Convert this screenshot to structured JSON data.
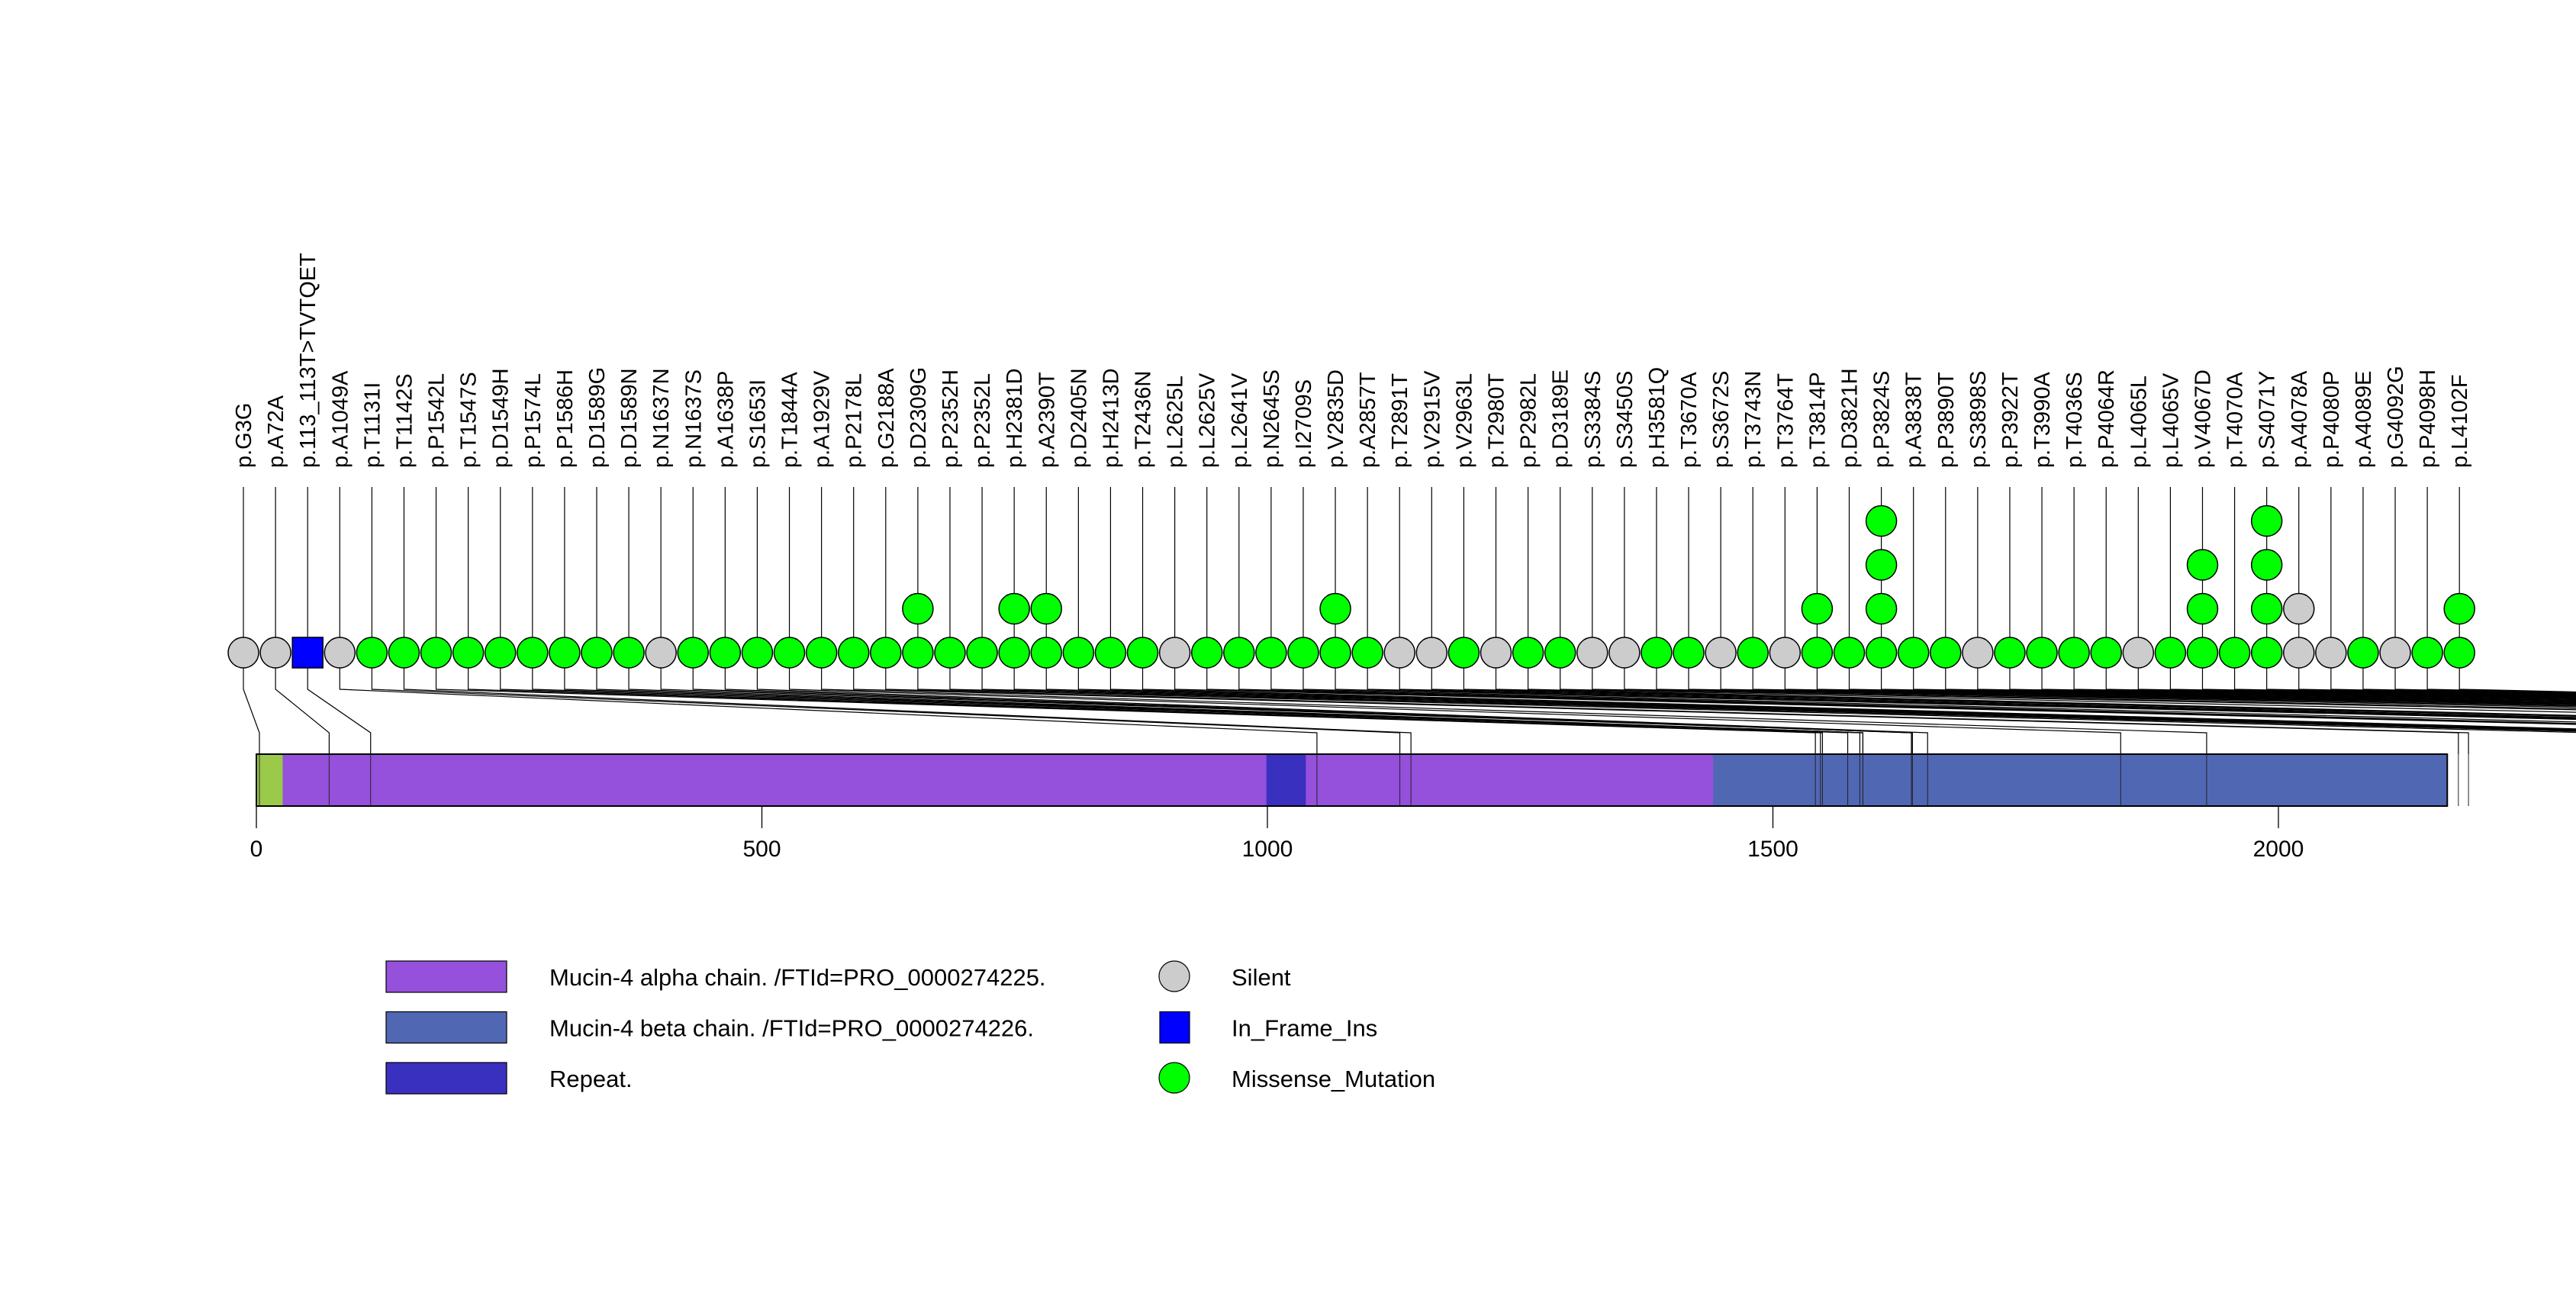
{
  "chart_data": {
    "type": "lollipop",
    "title": "",
    "xlabel": "",
    "ylabel": "",
    "protein_length": 2167,
    "xlim": [
      0,
      2167
    ],
    "x_ticks": [
      "0",
      "500",
      "1000",
      "1500",
      "2000"
    ],
    "x_tick_values": [
      0,
      500,
      1000,
      1500,
      2000
    ],
    "domains": [
      {
        "name": "signal",
        "start": 1,
        "end": 27,
        "color": "#9BC94A"
      },
      {
        "name": "Mucin-4 alpha chain. /FTId=PRO_0000274225.",
        "start": 27,
        "end": 1442,
        "color": "#9550DC"
      },
      {
        "name": "Repeat.",
        "start": 1000,
        "end": 1038,
        "color": "#3A30C0"
      },
      {
        "name": "Mucin-4 beta chain. /FTId=PRO_0000274226.",
        "start": 1442,
        "end": 2167,
        "color": "#5067B4"
      }
    ],
    "mutation_colors": {
      "Silent": "#CCCCCC",
      "In_Frame_Ins": "#0000FF",
      "Missense_Mutation": "#00FF00"
    },
    "mutations": [
      {
        "label": "p.G3G",
        "position": 3,
        "type": "Silent",
        "count": 1
      },
      {
        "label": "p.A72A",
        "position": 72,
        "type": "Silent",
        "count": 1
      },
      {
        "label": "p.113_113T>TVTQET",
        "position": 113,
        "type": "In_Frame_Ins",
        "count": 1
      },
      {
        "label": "p.A1049A",
        "position": 1049,
        "type": "Silent",
        "count": 1
      },
      {
        "label": "p.T1131I",
        "position": 1131,
        "type": "Missense_Mutation",
        "count": 1
      },
      {
        "label": "p.T1142S",
        "position": 1142,
        "type": "Missense_Mutation",
        "count": 1
      },
      {
        "label": "p.P1542L",
        "position": 1542,
        "type": "Missense_Mutation",
        "count": 1
      },
      {
        "label": "p.T1547S",
        "position": 1547,
        "type": "Missense_Mutation",
        "count": 1
      },
      {
        "label": "p.D1549H",
        "position": 1549,
        "type": "Missense_Mutation",
        "count": 1
      },
      {
        "label": "p.P1574L",
        "position": 1574,
        "type": "Missense_Mutation",
        "count": 1
      },
      {
        "label": "p.P1586H",
        "position": 1586,
        "type": "Missense_Mutation",
        "count": 1
      },
      {
        "label": "p.D1589G",
        "position": 1589,
        "type": "Missense_Mutation",
        "count": 1
      },
      {
        "label": "p.D1589N",
        "position": 1589,
        "type": "Missense_Mutation",
        "count": 1
      },
      {
        "label": "p.N1637N",
        "position": 1637,
        "type": "Silent",
        "count": 1
      },
      {
        "label": "p.N1637S",
        "position": 1637,
        "type": "Missense_Mutation",
        "count": 1
      },
      {
        "label": "p.A1638P",
        "position": 1638,
        "type": "Missense_Mutation",
        "count": 1
      },
      {
        "label": "p.S1653I",
        "position": 1653,
        "type": "Missense_Mutation",
        "count": 1
      },
      {
        "label": "p.T1844A",
        "position": 1844,
        "type": "Missense_Mutation",
        "count": 1
      },
      {
        "label": "p.A1929V",
        "position": 1929,
        "type": "Missense_Mutation",
        "count": 1
      },
      {
        "label": "p.P2178L",
        "position": 2178,
        "type": "Missense_Mutation",
        "count": 1
      },
      {
        "label": "p.G2188A",
        "position": 2188,
        "type": "Missense_Mutation",
        "count": 1
      },
      {
        "label": "p.D2309G",
        "position": 2309,
        "type": "Missense_Mutation",
        "count": 2
      },
      {
        "label": "p.P2352H",
        "position": 2352,
        "type": "Missense_Mutation",
        "count": 1
      },
      {
        "label": "p.P2352L",
        "position": 2352,
        "type": "Missense_Mutation",
        "count": 1
      },
      {
        "label": "p.H2381D",
        "position": 2381,
        "type": "Missense_Mutation",
        "count": 2
      },
      {
        "label": "p.A2390T",
        "position": 2390,
        "type": "Missense_Mutation",
        "count": 2
      },
      {
        "label": "p.D2405N",
        "position": 2405,
        "type": "Missense_Mutation",
        "count": 1
      },
      {
        "label": "p.H2413D",
        "position": 2413,
        "type": "Missense_Mutation",
        "count": 1
      },
      {
        "label": "p.T2436N",
        "position": 2436,
        "type": "Missense_Mutation",
        "count": 1
      },
      {
        "label": "p.L2625L",
        "position": 2625,
        "type": "Silent",
        "count": 1
      },
      {
        "label": "p.L2625V",
        "position": 2625,
        "type": "Missense_Mutation",
        "count": 1
      },
      {
        "label": "p.L2641V",
        "position": 2641,
        "type": "Missense_Mutation",
        "count": 1
      },
      {
        "label": "p.N2645S",
        "position": 2645,
        "type": "Missense_Mutation",
        "count": 1
      },
      {
        "label": "p.I2709S",
        "position": 2709,
        "type": "Missense_Mutation",
        "count": 1
      },
      {
        "label": "p.V2835D",
        "position": 2835,
        "type": "Missense_Mutation",
        "count": 2
      },
      {
        "label": "p.A2857T",
        "position": 2857,
        "type": "Missense_Mutation",
        "count": 1
      },
      {
        "label": "p.T2891T",
        "position": 2891,
        "type": "Silent",
        "count": 1
      },
      {
        "label": "p.V2915V",
        "position": 2915,
        "type": "Silent",
        "count": 1
      },
      {
        "label": "p.V2963L",
        "position": 2963,
        "type": "Missense_Mutation",
        "count": 1
      },
      {
        "label": "p.T2980T",
        "position": 2980,
        "type": "Silent",
        "count": 1
      },
      {
        "label": "p.P2982L",
        "position": 2982,
        "type": "Missense_Mutation",
        "count": 1
      },
      {
        "label": "p.D3189E",
        "position": 3189,
        "type": "Missense_Mutation",
        "count": 1
      },
      {
        "label": "p.S3384S",
        "position": 3384,
        "type": "Silent",
        "count": 1
      },
      {
        "label": "p.S3450S",
        "position": 3450,
        "type": "Silent",
        "count": 1
      },
      {
        "label": "p.H3581Q",
        "position": 3581,
        "type": "Missense_Mutation",
        "count": 1
      },
      {
        "label": "p.T3670A",
        "position": 3670,
        "type": "Missense_Mutation",
        "count": 1
      },
      {
        "label": "p.S3672S",
        "position": 3672,
        "type": "Silent",
        "count": 1
      },
      {
        "label": "p.T3743N",
        "position": 3743,
        "type": "Missense_Mutation",
        "count": 1
      },
      {
        "label": "p.T3764T",
        "position": 3764,
        "type": "Silent",
        "count": 1
      },
      {
        "label": "p.T3814P",
        "position": 3814,
        "type": "Missense_Mutation",
        "count": 2
      },
      {
        "label": "p.D3821H",
        "position": 3821,
        "type": "Missense_Mutation",
        "count": 1
      },
      {
        "label": "p.P3824S",
        "position": 3824,
        "type": "Missense_Mutation",
        "count": 4
      },
      {
        "label": "p.A3838T",
        "position": 3838,
        "type": "Missense_Mutation",
        "count": 1
      },
      {
        "label": "p.P3890T",
        "position": 3890,
        "type": "Missense_Mutation",
        "count": 1
      },
      {
        "label": "p.S3898S",
        "position": 3898,
        "type": "Silent",
        "count": 1
      },
      {
        "label": "p.P3922T",
        "position": 3922,
        "type": "Missense_Mutation",
        "count": 1
      },
      {
        "label": "p.T3990A",
        "position": 3990,
        "type": "Missense_Mutation",
        "count": 1
      },
      {
        "label": "p.T4036S",
        "position": 4036,
        "type": "Missense_Mutation",
        "count": 1
      },
      {
        "label": "p.P4064R",
        "position": 4064,
        "type": "Missense_Mutation",
        "count": 1
      },
      {
        "label": "p.L4065L",
        "position": 4065,
        "type": "Silent",
        "count": 1
      },
      {
        "label": "p.L4065V",
        "position": 4065,
        "type": "Missense_Mutation",
        "count": 1
      },
      {
        "label": "p.V4067D",
        "position": 4067,
        "type": "Missense_Mutation",
        "count": 3
      },
      {
        "label": "p.T4070A",
        "position": 4070,
        "type": "Missense_Mutation",
        "count": 1
      },
      {
        "label": "p.S4071Y",
        "position": 4071,
        "type": "Missense_Mutation",
        "count": 4
      },
      {
        "label": "p.A4078A",
        "position": 4078,
        "type": "Silent",
        "count": 2
      },
      {
        "label": "p.P4080P",
        "position": 4080,
        "type": "Silent",
        "count": 1
      },
      {
        "label": "p.A4089E",
        "position": 4089,
        "type": "Missense_Mutation",
        "count": 1
      },
      {
        "label": "p.G4092G",
        "position": 4092,
        "type": "Silent",
        "count": 1
      },
      {
        "label": "p.P4098H",
        "position": 4098,
        "type": "Missense_Mutation",
        "count": 1
      },
      {
        "label": "p.L4102F",
        "position": 4102,
        "type": "Missense_Mutation",
        "count": 2
      }
    ],
    "legend": {
      "placement": "bottom",
      "domains": [
        {
          "label": "Mucin-4 alpha chain. /FTId=PRO_0000274225.",
          "color": "#9550DC"
        },
        {
          "label": "Mucin-4 beta chain. /FTId=PRO_0000274226.",
          "color": "#5067B4"
        },
        {
          "label": "Repeat.",
          "color": "#3A30C0"
        }
      ],
      "mutations": [
        {
          "label": "Silent",
          "color": "#CCCCCC",
          "shape": "circle"
        },
        {
          "label": "In_Frame_Ins",
          "color": "#0000FF",
          "shape": "square"
        },
        {
          "label": "Missense_Mutation",
          "color": "#00FF00",
          "shape": "circle"
        }
      ]
    }
  }
}
